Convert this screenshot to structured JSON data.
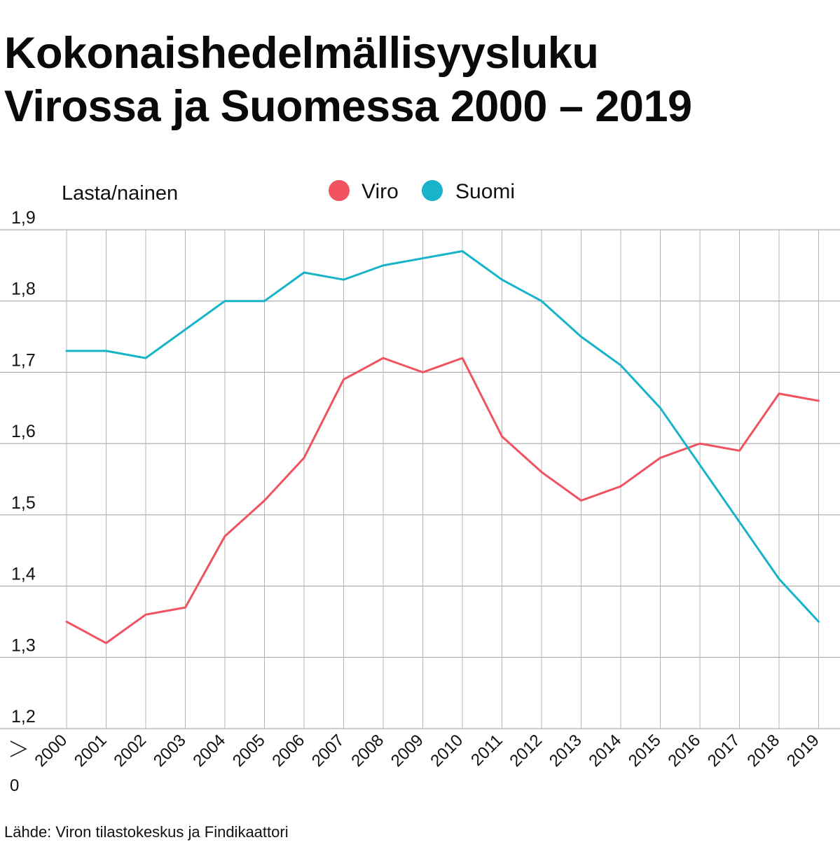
{
  "chart_data": {
    "type": "line",
    "title": [
      "Kokonaishedelmällisyysluku",
      "Virossa ja Suomessa 2000 – 2019"
    ],
    "ylabel": "Lasta/nainen",
    "xlabel": "",
    "ylim": [
      1.2,
      1.9
    ],
    "yticks": [
      1.2,
      1.3,
      1.4,
      1.5,
      1.6,
      1.7,
      1.8,
      1.9
    ],
    "ytick_labels": [
      "1,2",
      "1,3",
      "1,4",
      "1,5",
      "1,6",
      "1,7",
      "1,8",
      "1,9"
    ],
    "axis_break_label": "0",
    "categories": [
      "2000",
      "2001",
      "2002",
      "2003",
      "2004",
      "2005",
      "2006",
      "2007",
      "2008",
      "2009",
      "2010",
      "2011",
      "2012",
      "2013",
      "2014",
      "2015",
      "2016",
      "2017",
      "2018",
      "2019"
    ],
    "series": [
      {
        "name": "Viro",
        "color": "#f0525f",
        "values": [
          1.35,
          1.32,
          1.36,
          1.37,
          1.47,
          1.52,
          1.58,
          1.69,
          1.72,
          1.7,
          1.72,
          1.61,
          1.56,
          1.52,
          1.54,
          1.58,
          1.6,
          1.59,
          1.67,
          1.66
        ]
      },
      {
        "name": "Suomi",
        "color": "#17b3c8",
        "values": [
          1.73,
          1.73,
          1.72,
          1.76,
          1.8,
          1.8,
          1.84,
          1.83,
          1.85,
          1.86,
          1.87,
          1.83,
          1.8,
          1.75,
          1.71,
          1.65,
          1.57,
          1.49,
          1.41,
          1.35
        ]
      }
    ],
    "legend": "top-center",
    "grid": true
  },
  "source": "Lähde: Viron tilastokeskus ja Findikaattori"
}
